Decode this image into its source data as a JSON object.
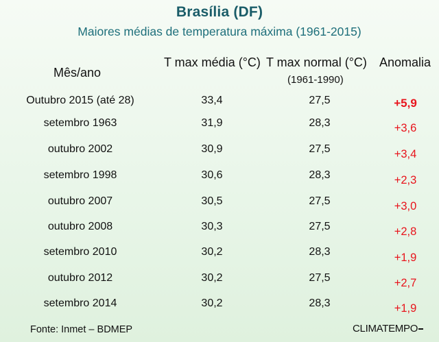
{
  "title": "Brasília (DF)",
  "subtitle": "Maiores médias de temperatura máxima (1961-2015)",
  "headers": {
    "month_year": "Mês/ano",
    "tmax_avg": "T max média (°C)",
    "tmax_normal": "T max  normal (°C)",
    "tmax_normal_period": "(1961-1990)",
    "anomaly": "Anomalia"
  },
  "rows": [
    {
      "month": "Outubro 2015 (até 28)",
      "tmax_avg": "33,4",
      "tmax_normal": "27,5",
      "anomaly": "+5,9"
    },
    {
      "month": "setembro 1963",
      "tmax_avg": "31,9",
      "tmax_normal": "28,3",
      "anomaly": "+3,6"
    },
    {
      "month": "outubro 2002",
      "tmax_avg": "30,9",
      "tmax_normal": "27,5",
      "anomaly": "+3,4"
    },
    {
      "month": "setembro 1998",
      "tmax_avg": "30,6",
      "tmax_normal": "28,3",
      "anomaly": "+2,3"
    },
    {
      "month": "outubro 2007",
      "tmax_avg": "30,5",
      "tmax_normal": "27,5",
      "anomaly": "+3,0"
    },
    {
      "month": "outubro 2008",
      "tmax_avg": "30,3",
      "tmax_normal": "27,5",
      "anomaly": "+2,8"
    },
    {
      "month": "setembro 2010",
      "tmax_avg": "30,2",
      "tmax_normal": "28,3",
      "anomaly": "+1,9"
    },
    {
      "month": "outubro 2012",
      "tmax_avg": "30,2",
      "tmax_normal": "27,5",
      "anomaly": "+2,7"
    },
    {
      "month": "setembro 2014",
      "tmax_avg": "30,2",
      "tmax_normal": "28,3",
      "anomaly": "+1,9"
    }
  ],
  "footer": {
    "source": "Fonte: Inmet – BDMEP",
    "logo": "CLIMATEMPO"
  },
  "colors": {
    "title": "#1a5c68",
    "anomaly": "#e8141c"
  }
}
